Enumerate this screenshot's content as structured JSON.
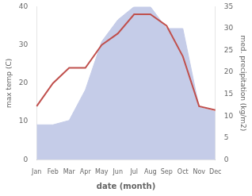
{
  "chart_data": {
    "type": "line",
    "categories": [
      "Jan",
      "Feb",
      "Mar",
      "Apr",
      "May",
      "Jun",
      "Jul",
      "Aug",
      "Sep",
      "Oct",
      "Nov",
      "Dec"
    ],
    "series": [
      {
        "type": "line",
        "color": "#c0504d",
        "values": [
          14,
          20,
          24,
          24,
          30,
          33,
          38,
          38,
          35,
          27,
          14,
          13
        ]
      },
      {
        "type": "area",
        "color": "#c5cce8",
        "axis": "y2",
        "values": [
          8,
          8,
          9,
          16,
          27,
          32,
          35,
          35,
          30,
          30,
          12,
          11
        ]
      }
    ],
    "xlabel": "date (month)",
    "ylabel": "max temp (C)",
    "y2label": "med. precipitation (kg/m2)",
    "ylim": [
      0,
      40
    ],
    "yticks": [
      0,
      10,
      20,
      30,
      40
    ],
    "y2lim": [
      0,
      35
    ],
    "y2ticks": [
      0,
      5,
      10,
      15,
      20,
      25,
      30,
      35
    ],
    "grid": false
  }
}
